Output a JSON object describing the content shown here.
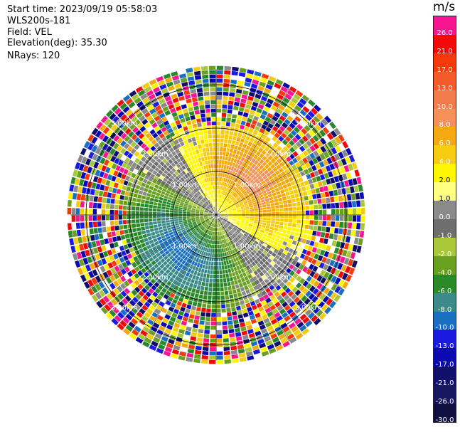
{
  "info": {
    "start_time": "Start time: 2023/09/19 05:58:03",
    "station": "WLS200s-181",
    "field": "Field: VEL",
    "elevation": "Elevation(deg): 35.30",
    "nrays": "NRays: 120"
  },
  "colorbar": {
    "unit": "m/s",
    "levels": [
      {
        "label": "26.0",
        "color": "#f7168f"
      },
      {
        "label": "21.0",
        "color": "#f20a0a"
      },
      {
        "label": "17.0",
        "color": "#f43a0a"
      },
      {
        "label": "13.0",
        "color": "#f45a2a"
      },
      {
        "label": "10.0",
        "color": "#f37a4a"
      },
      {
        "label": "8.0",
        "color": "#f5905a"
      },
      {
        "label": "6.0",
        "color": "#f5a910"
      },
      {
        "label": "4.0",
        "color": "#f7cc10"
      },
      {
        "label": "2.0",
        "color": "#fff700"
      },
      {
        "label": "1.0",
        "color": "#ffff80"
      },
      {
        "label": "0.0",
        "color": "#8a8a8a"
      },
      {
        "label": "-1.0",
        "color": "#6e6e6e"
      },
      {
        "label": "-2.0",
        "color": "#a8c83a"
      },
      {
        "label": "-4.0",
        "color": "#6aa020"
      },
      {
        "label": "-6.0",
        "color": "#2a8a2a"
      },
      {
        "label": "-8.0",
        "color": "#3a8a8a"
      },
      {
        "label": "-10.0",
        "color": "#1a70c0"
      },
      {
        "label": "-13.0",
        "color": "#1a1ae0"
      },
      {
        "label": "-17.0",
        "color": "#0a0ab0"
      },
      {
        "label": "-21.0",
        "color": "#10106a"
      },
      {
        "label": "-26.0",
        "color": "#181860"
      },
      {
        "label": "-30.0",
        "color": "#101040"
      }
    ]
  },
  "chart_data": {
    "type": "heatmap",
    "projection": "polar-ppi",
    "field": "VEL",
    "nrays": 120,
    "range_rings_km": [
      1,
      2,
      3
    ],
    "range_labels": [
      "1.00km",
      "2.00km",
      "3.00km"
    ],
    "max_range_km": 3.35,
    "clim": [
      -30,
      26
    ],
    "structure": {
      "positive_sector_deg_center": 45,
      "negative_sector_deg_center": 225,
      "clean_data_range_km": 2.0,
      "noise_beyond_km": 2.3
    }
  }
}
